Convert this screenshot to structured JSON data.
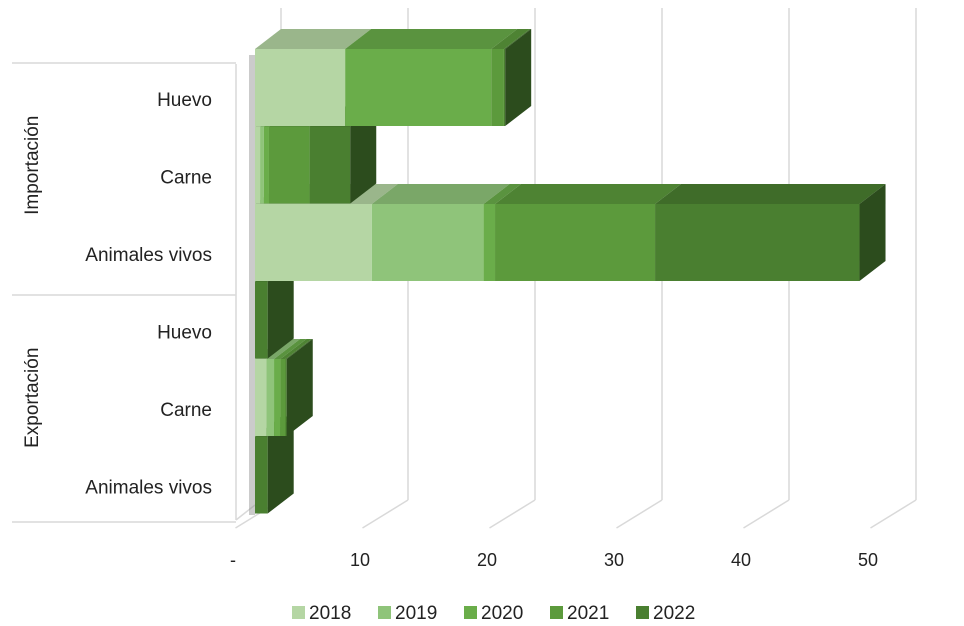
{
  "chart_data": {
    "type": "bar",
    "orientation": "horizontal",
    "stacked": true,
    "groups": [
      {
        "label": "Importación",
        "categories": [
          "Huevo",
          "Carne",
          "Animales vivos"
        ]
      },
      {
        "label": "Exportación",
        "categories": [
          "Huevo",
          "Carne",
          "Animales vivos"
        ]
      }
    ],
    "series": [
      {
        "name": "2018",
        "color": "#b5d6a4",
        "values": [
          7.1,
          0.4,
          9.2,
          0,
          0.9,
          0
        ]
      },
      {
        "name": "2019",
        "color": "#8fc47a",
        "values": [
          0,
          0.3,
          8.8,
          0,
          0.6,
          0
        ]
      },
      {
        "name": "2020",
        "color": "#6aad4a",
        "values": [
          11.5,
          0.4,
          0.9,
          0,
          0.5,
          0
        ]
      },
      {
        "name": "2021",
        "color": "#5c9a3c",
        "values": [
          1.0,
          3.2,
          12.6,
          0,
          0.4,
          0
        ]
      },
      {
        "name": "2022",
        "color": "#4a7f30",
        "values": [
          0.1,
          3.2,
          16.1,
          1.0,
          0.1,
          1.0
        ]
      }
    ],
    "xlim": [
      0,
      50
    ],
    "xticks": [
      {
        "value": 0,
        "label": "-"
      },
      {
        "value": 10,
        "label": "10"
      },
      {
        "value": 20,
        "label": "20"
      },
      {
        "value": 30,
        "label": "30"
      },
      {
        "value": 40,
        "label": "40"
      },
      {
        "value": 50,
        "label": "50"
      }
    ],
    "grid": true,
    "legend_position": "bottom"
  }
}
